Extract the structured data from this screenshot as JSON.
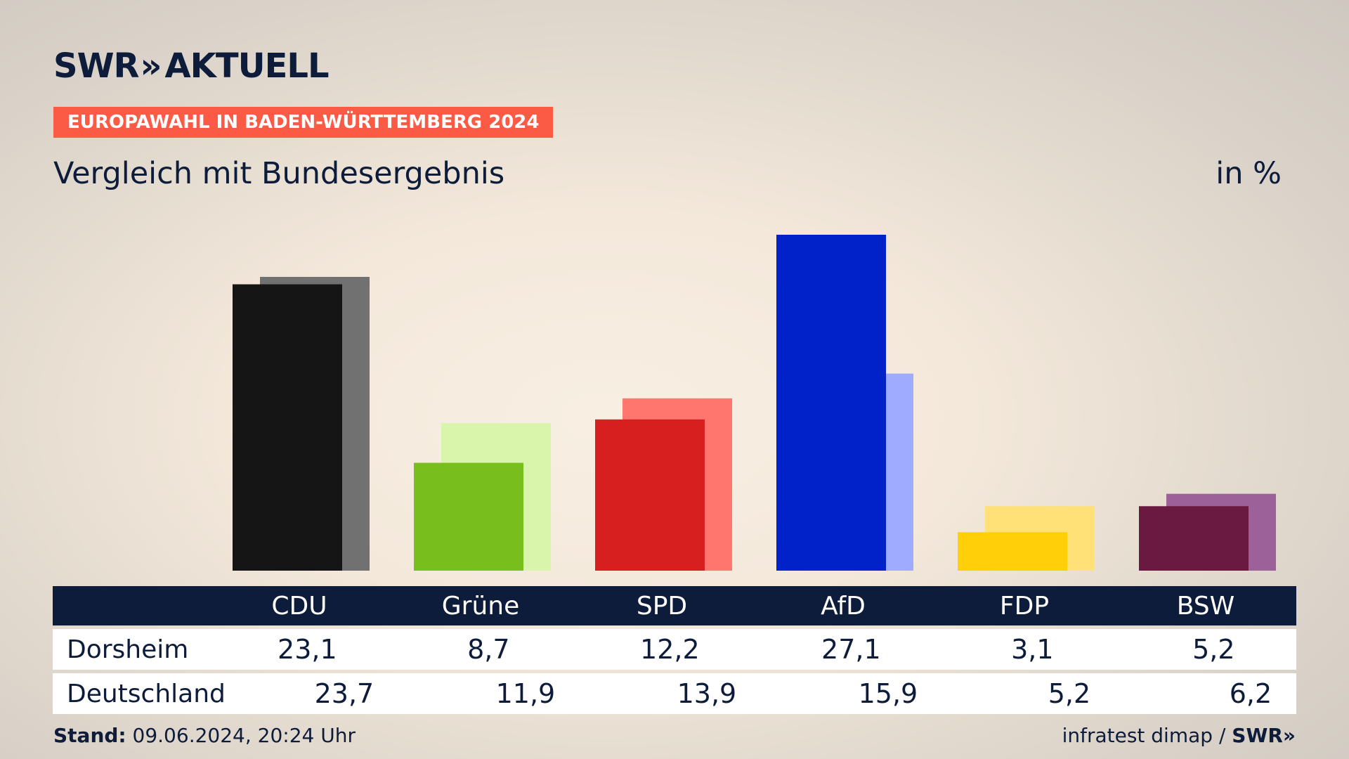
{
  "header": {
    "logo_text": "SWR",
    "logo_chevrons": "»",
    "logo_suffix": "AKTUELL",
    "tagline": "EUROPAWAHL IN BADEN-WÜRTTEMBERG 2024",
    "subtitle": "Vergleich mit Bundesergebnis",
    "unit": "in %"
  },
  "chart_data": {
    "type": "bar",
    "categories": [
      "CDU",
      "Grüne",
      "SPD",
      "AfD",
      "FDP",
      "BSW"
    ],
    "series": [
      {
        "name": "Dorsheim",
        "values": [
          23.1,
          8.7,
          12.2,
          27.1,
          3.1,
          5.2
        ],
        "colors": [
          "#151515",
          "#78bf1d",
          "#d81f1f",
          "#0022c8",
          "#ffcf0a",
          "#6a1940"
        ]
      },
      {
        "name": "Deutschland",
        "values": [
          23.7,
          11.9,
          13.9,
          15.9,
          5.2,
          6.2
        ],
        "colors": [
          "#727171",
          "#d8f5ab",
          "#ff766f",
          "#9eabff",
          "#ffe177",
          "#9c6199"
        ]
      }
    ],
    "ylim": [
      0,
      30
    ],
    "grid": false
  },
  "table": {
    "headers": [
      "CDU",
      "Grüne",
      "SPD",
      "AfD",
      "FDP",
      "BSW"
    ],
    "rows": [
      {
        "label": "Dorsheim",
        "values": [
          "23,1",
          "8,7",
          "12,2",
          "27,1",
          "3,1",
          "5,2"
        ]
      },
      {
        "label": "Deutschland",
        "values": [
          "23,7",
          "11,9",
          "13,9",
          "15,9",
          "5,2",
          "6,2"
        ]
      }
    ]
  },
  "footer": {
    "stand_label": "Stand:",
    "stand_value": "09.06.2024, 20:24 Uhr",
    "source": "infratest dimap /",
    "source_brand": "SWR»"
  }
}
